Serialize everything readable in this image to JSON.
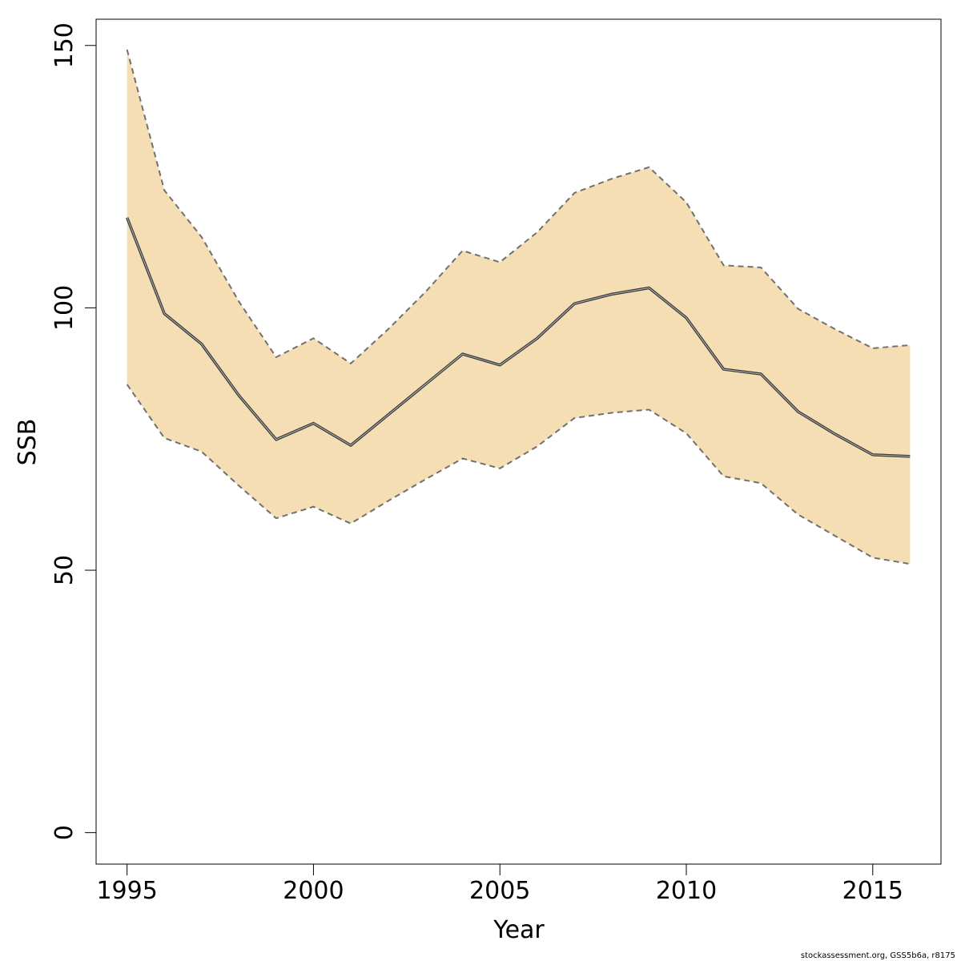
{
  "chart_data": {
    "type": "line",
    "title": "",
    "xlabel": "Year",
    "ylabel": "SSB",
    "xlim": [
      1994.17,
      2016.83
    ],
    "ylim": [
      -6,
      155
    ],
    "x_ticks": [
      1995,
      2000,
      2005,
      2010,
      2015
    ],
    "y_ticks": [
      0,
      50,
      100,
      150
    ],
    "grid": false,
    "legend": "none",
    "x": [
      1995,
      1996,
      1997,
      1998,
      1999,
      2000,
      2001,
      2002,
      2003,
      2004,
      2005,
      2006,
      2007,
      2008,
      2009,
      2010,
      2011,
      2012,
      2013,
      2014,
      2015,
      2016
    ],
    "series": [
      {
        "role": "estimate",
        "values": [
          117.2,
          98.9,
          93.1,
          83.3,
          74.9,
          78.0,
          73.8,
          79.6,
          85.4,
          91.2,
          89.1,
          94.2,
          100.8,
          102.6,
          103.8,
          98.1,
          88.3,
          87.4,
          80.2,
          75.9,
          72.0,
          71.7
        ]
      },
      {
        "role": "upper",
        "values": [
          149.2,
          122.4,
          113.5,
          101.2,
          90.6,
          94.2,
          89.4,
          95.9,
          103.0,
          110.9,
          108.7,
          114.4,
          121.9,
          124.6,
          126.8,
          120.1,
          108.1,
          107.7,
          99.8,
          95.9,
          92.3,
          92.9
        ]
      },
      {
        "role": "lower",
        "values": [
          85.4,
          75.2,
          72.6,
          66.1,
          59.9,
          62.1,
          58.9,
          63.2,
          67.3,
          71.3,
          69.4,
          73.6,
          79.0,
          80.0,
          80.6,
          76.1,
          67.9,
          66.6,
          60.6,
          56.5,
          52.4,
          51.2
        ]
      }
    ],
    "colors": {
      "band_fill": "#f5deb3",
      "bound_line": "#707070",
      "estimate_line": "#3a3a3a",
      "estimate_highlight": "#b5b5b5"
    }
  },
  "footer": {
    "credit": "stockassessment.org, GSS5b6a, r8175"
  }
}
